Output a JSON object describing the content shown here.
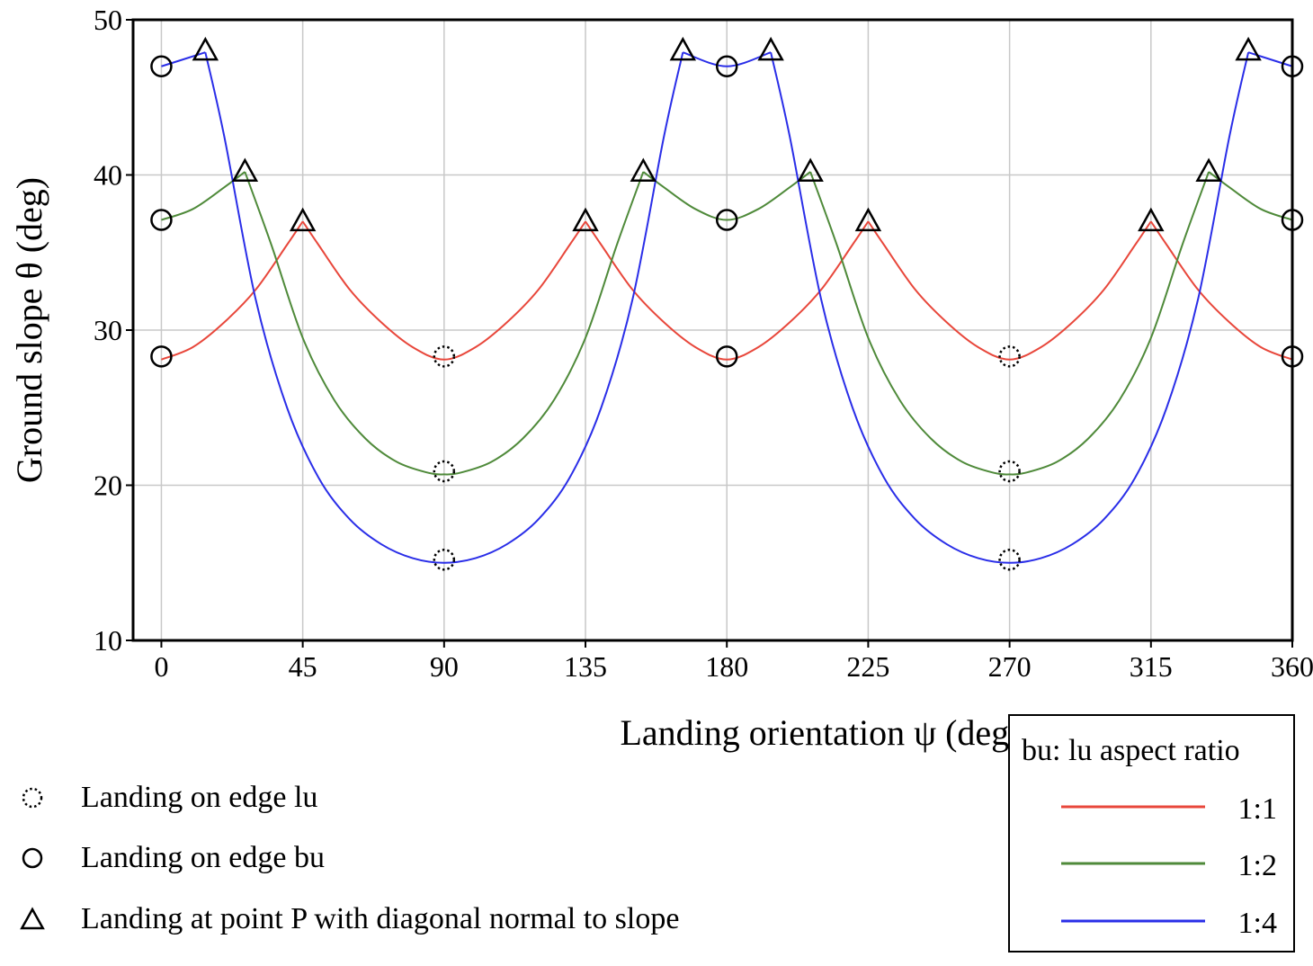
{
  "chart_data": {
    "type": "line",
    "xlabel": "Landing orientation ψ (deg)",
    "ylabel": "Ground slope  θ (deg)",
    "xlim": [
      -9,
      360
    ],
    "ylim": [
      10,
      50
    ],
    "xticks": [
      "0",
      "45",
      "90",
      "135",
      "180",
      "225",
      "270",
      "315",
      "360"
    ],
    "yticks": [
      "10",
      "20",
      "30",
      "40",
      "50"
    ],
    "grid": true,
    "series": [
      {
        "name": "1:1",
        "color": "#e8473b",
        "x": [
          0,
          10,
          20,
          30,
          40,
          45,
          50,
          60,
          70,
          80,
          90,
          100,
          110,
          120,
          130,
          135,
          140,
          150,
          160,
          170,
          180,
          190,
          200,
          210,
          220,
          225,
          230,
          240,
          250,
          260,
          270,
          280,
          290,
          300,
          310,
          315,
          320,
          330,
          340,
          350,
          360
        ],
        "y": [
          28.1,
          28.9,
          30.5,
          32.6,
          35.5,
          37.0,
          35.5,
          32.6,
          30.5,
          28.9,
          28.1,
          28.9,
          30.5,
          32.6,
          35.5,
          37.0,
          35.5,
          32.6,
          30.5,
          28.9,
          28.1,
          28.9,
          30.5,
          32.6,
          35.5,
          37.0,
          35.5,
          32.6,
          30.5,
          28.9,
          28.1,
          28.9,
          30.5,
          32.6,
          35.5,
          37.0,
          35.5,
          32.6,
          30.5,
          28.9,
          28.1
        ]
      },
      {
        "name": "1:2",
        "color": "#4f8a3a",
        "x": [
          0,
          10,
          20,
          26.6,
          35,
          45,
          55,
          65,
          75,
          85,
          90,
          95,
          105,
          115,
          125,
          135,
          145,
          153.4,
          160,
          170,
          180,
          190,
          200,
          206.6,
          215,
          225,
          235,
          245,
          255,
          265,
          270,
          275,
          285,
          295,
          305,
          315,
          325,
          333.4,
          340,
          350,
          360
        ],
        "y": [
          37.1,
          37.8,
          39.2,
          40.2,
          35.5,
          29.5,
          25.5,
          23.0,
          21.5,
          20.8,
          20.7,
          20.8,
          21.5,
          23.0,
          25.5,
          29.5,
          35.5,
          40.2,
          39.2,
          37.8,
          37.1,
          37.8,
          39.2,
          40.2,
          35.5,
          29.5,
          25.5,
          23.0,
          21.5,
          20.8,
          20.7,
          20.8,
          21.5,
          23.0,
          25.5,
          29.5,
          35.5,
          40.2,
          39.2,
          37.8,
          37.1
        ]
      },
      {
        "name": "1:4",
        "color": "#2a2ee8",
        "x": [
          0,
          14,
          20,
          30,
          40,
          50,
          60,
          70,
          80,
          90,
          100,
          110,
          120,
          130,
          140,
          150,
          160,
          166,
          180,
          194,
          200,
          210,
          220,
          230,
          240,
          250,
          260,
          270,
          280,
          290,
          300,
          310,
          320,
          330,
          340,
          346,
          360
        ],
        "y": [
          47.0,
          47.9,
          42.5,
          32.0,
          25.0,
          20.5,
          17.8,
          16.2,
          15.3,
          15.0,
          15.3,
          16.2,
          17.8,
          20.5,
          25.0,
          32.0,
          42.5,
          47.9,
          47.0,
          47.9,
          42.5,
          32.0,
          25.0,
          20.5,
          17.8,
          16.2,
          15.3,
          15.0,
          15.3,
          16.2,
          17.8,
          20.5,
          25.0,
          32.0,
          42.5,
          47.9,
          47.0
        ]
      }
    ],
    "markers": {
      "edge_lu": [
        [
          90,
          28.3
        ],
        [
          270,
          28.3
        ],
        [
          90,
          20.9
        ],
        [
          270,
          20.9
        ],
        [
          90,
          15.2
        ],
        [
          270,
          15.2
        ]
      ],
      "edge_bu": [
        [
          0,
          28.3
        ],
        [
          180,
          28.3
        ],
        [
          360,
          28.3
        ],
        [
          0,
          37.1
        ],
        [
          180,
          37.1
        ],
        [
          360,
          37.1
        ],
        [
          0,
          47.0
        ],
        [
          180,
          47.0
        ],
        [
          360,
          47.0
        ]
      ],
      "point_p": [
        [
          45,
          37.0
        ],
        [
          135,
          37.0
        ],
        [
          225,
          37.0
        ],
        [
          315,
          37.0
        ],
        [
          26.6,
          40.2
        ],
        [
          153.4,
          40.2
        ],
        [
          206.6,
          40.2
        ],
        [
          333.4,
          40.2
        ],
        [
          14,
          48.0
        ],
        [
          166,
          48.0
        ],
        [
          194,
          48.0
        ],
        [
          346,
          48.0
        ]
      ]
    },
    "legend": {
      "placement": "bottom-right",
      "title": "bu: lu  aspect ratio",
      "entries": [
        "1:1",
        "1:2",
        "1:4"
      ]
    },
    "marker_key": {
      "placement": "bottom-left",
      "entries": [
        {
          "symbol": "dotted-circle",
          "label": "Landing on edge lu"
        },
        {
          "symbol": "circle",
          "label": "Landing on edge bu"
        },
        {
          "symbol": "triangle",
          "label": "Landing at point P with diagonal normal to slope"
        }
      ]
    }
  }
}
